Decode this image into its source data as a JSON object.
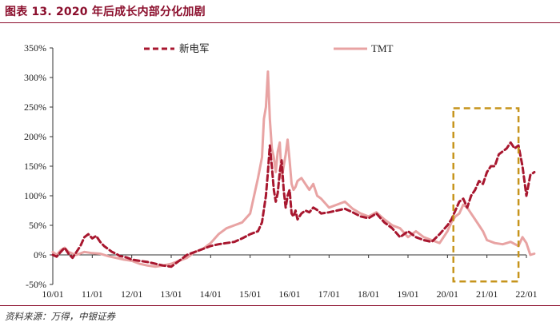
{
  "header": {
    "title": "图表 13. 2020 年后成长内部分化加剧"
  },
  "footer": {
    "source": "资料来源：万得，中银证券"
  },
  "colors": {
    "series1": "#a8172f",
    "series2": "#e8a3a3",
    "highlight": "#c6941c",
    "text": "#222222",
    "accent": "#8b0e2c"
  },
  "chart_data": {
    "type": "line",
    "title": "",
    "xlabel": "",
    "ylabel": "",
    "ylim": [
      -50,
      350
    ],
    "xlim": [
      0,
      12
    ],
    "yticks": [
      -50,
      0,
      50,
      100,
      150,
      200,
      250,
      300,
      350
    ],
    "ytick_labels": [
      "-50%",
      "0%",
      "50%",
      "100%",
      "150%",
      "200%",
      "250%",
      "300%",
      "350%"
    ],
    "x_tick_labels": [
      "10/01",
      "11/01",
      "12/01",
      "13/01",
      "14/01",
      "15/01",
      "16/01",
      "17/01",
      "18/01",
      "19/01",
      "20/01",
      "21/01",
      "22/01"
    ],
    "legend": {
      "placement": "top",
      "entries": [
        "新电军",
        "TMT"
      ]
    },
    "highlight_box": {
      "x_range": [
        10.15,
        11.8
      ],
      "y_range": [
        -45,
        248
      ],
      "style": "dashed"
    },
    "series": [
      {
        "name": "新电军",
        "style": "dashed",
        "x": [
          0,
          0.1,
          0.2,
          0.3,
          0.4,
          0.5,
          0.6,
          0.7,
          0.8,
          0.9,
          1.0,
          1.1,
          1.2,
          1.3,
          1.4,
          1.5,
          1.6,
          1.7,
          1.8,
          1.9,
          2.0,
          2.2,
          2.4,
          2.6,
          2.8,
          3.0,
          3.2,
          3.4,
          3.6,
          3.8,
          4.0,
          4.2,
          4.4,
          4.6,
          4.8,
          5.0,
          5.2,
          5.3,
          5.4,
          5.45,
          5.5,
          5.55,
          5.6,
          5.65,
          5.7,
          5.75,
          5.8,
          5.85,
          5.9,
          5.95,
          6.0,
          6.05,
          6.1,
          6.15,
          6.2,
          6.3,
          6.4,
          6.5,
          6.6,
          6.7,
          6.8,
          7.0,
          7.2,
          7.4,
          7.6,
          7.8,
          8.0,
          8.2,
          8.4,
          8.6,
          8.8,
          9.0,
          9.2,
          9.4,
          9.6,
          9.8,
          10.0,
          10.1,
          10.2,
          10.3,
          10.4,
          10.5,
          10.6,
          10.7,
          10.8,
          10.9,
          11.0,
          11.1,
          11.2,
          11.3,
          11.4,
          11.5,
          11.6,
          11.7,
          11.8,
          11.9,
          12.0,
          12.1,
          12.2
        ],
        "values": [
          0,
          -3,
          5,
          12,
          2,
          -5,
          5,
          15,
          30,
          35,
          28,
          32,
          22,
          15,
          10,
          5,
          2,
          -2,
          -3,
          -5,
          -8,
          -10,
          -12,
          -15,
          -18,
          -20,
          -10,
          0,
          5,
          10,
          15,
          18,
          20,
          22,
          28,
          35,
          40,
          55,
          100,
          140,
          185,
          150,
          110,
          90,
          105,
          140,
          160,
          110,
          80,
          100,
          110,
          70,
          65,
          75,
          60,
          70,
          75,
          72,
          80,
          76,
          70,
          72,
          75,
          78,
          72,
          65,
          62,
          70,
          55,
          45,
          30,
          40,
          30,
          25,
          22,
          35,
          50,
          60,
          75,
          90,
          95,
          80,
          100,
          110,
          125,
          120,
          140,
          150,
          150,
          170,
          175,
          180,
          190,
          180,
          185,
          150,
          100,
          135,
          140
        ]
      },
      {
        "name": "TMT",
        "style": "solid",
        "x": [
          0,
          0.1,
          0.2,
          0.3,
          0.4,
          0.5,
          0.6,
          0.8,
          1.0,
          1.2,
          1.4,
          1.6,
          1.8,
          2.0,
          2.2,
          2.4,
          2.6,
          2.8,
          3.0,
          3.2,
          3.4,
          3.6,
          3.8,
          4.0,
          4.2,
          4.4,
          4.6,
          4.8,
          5.0,
          5.1,
          5.2,
          5.3,
          5.35,
          5.4,
          5.45,
          5.5,
          5.55,
          5.6,
          5.65,
          5.7,
          5.75,
          5.8,
          5.85,
          5.9,
          5.95,
          6.0,
          6.05,
          6.1,
          6.15,
          6.2,
          6.3,
          6.4,
          6.5,
          6.6,
          6.7,
          6.8,
          7.0,
          7.2,
          7.4,
          7.6,
          7.8,
          8.0,
          8.2,
          8.4,
          8.6,
          8.8,
          9.0,
          9.2,
          9.4,
          9.6,
          9.8,
          10.0,
          10.1,
          10.2,
          10.3,
          10.4,
          10.5,
          10.6,
          10.7,
          10.8,
          10.9,
          11.0,
          11.2,
          11.4,
          11.6,
          11.8,
          11.9,
          12.0,
          12.1,
          12.2
        ],
        "values": [
          5,
          0,
          8,
          12,
          5,
          2,
          0,
          5,
          3,
          2,
          -2,
          -5,
          -8,
          -10,
          -15,
          -18,
          -20,
          -18,
          -15,
          -10,
          -5,
          5,
          10,
          20,
          35,
          45,
          50,
          55,
          70,
          100,
          130,
          165,
          230,
          250,
          310,
          230,
          180,
          165,
          140,
          175,
          190,
          130,
          150,
          170,
          195,
          160,
          120,
          110,
          115,
          125,
          130,
          120,
          110,
          120,
          100,
          95,
          80,
          85,
          90,
          78,
          70,
          65,
          72,
          60,
          50,
          45,
          30,
          40,
          30,
          25,
          20,
          40,
          55,
          65,
          70,
          85,
          80,
          70,
          60,
          50,
          40,
          25,
          20,
          18,
          22,
          15,
          30,
          20,
          0,
          2
        ]
      }
    ]
  }
}
